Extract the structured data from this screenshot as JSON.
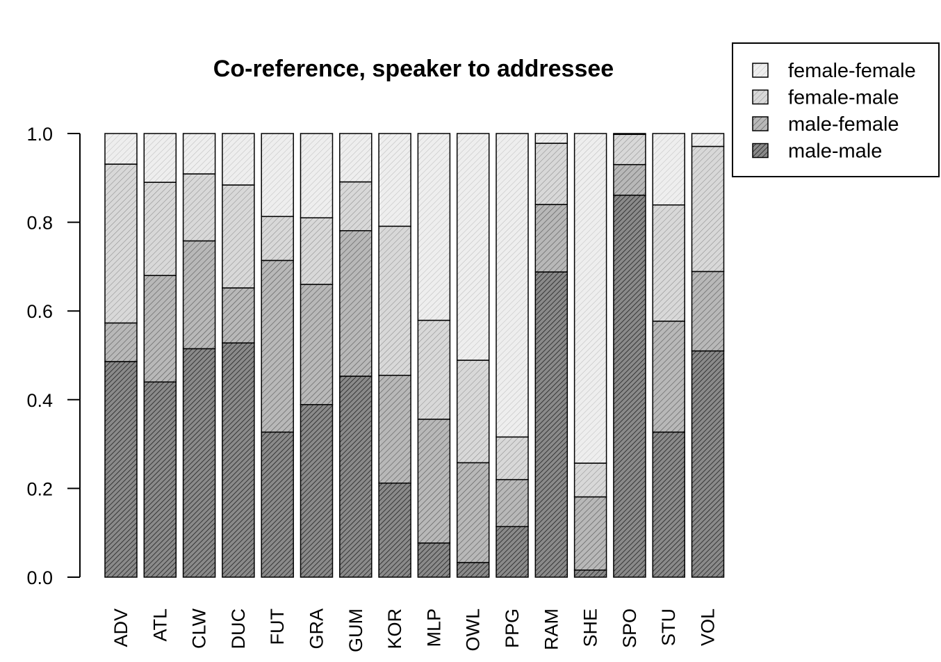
{
  "chart_data": {
    "type": "bar",
    "stacked": true,
    "title": "Co-reference, speaker to addressee",
    "xlabel": "",
    "ylabel": "",
    "ylim": [
      0,
      1
    ],
    "yticks": [
      "0.0",
      "0.2",
      "0.4",
      "0.6",
      "0.8",
      "1.0"
    ],
    "grid": false,
    "legend_position": "top-right",
    "categories": [
      "ADV",
      "ATL",
      "CLW",
      "DUC",
      "FUT",
      "GRA",
      "GUM",
      "KOR",
      "MLP",
      "OWL",
      "PPG",
      "RAM",
      "SHE",
      "SPO",
      "STU",
      "VOL"
    ],
    "series": [
      {
        "name": "male-male",
        "values": [
          0.486,
          0.44,
          0.515,
          0.528,
          0.327,
          0.389,
          0.453,
          0.212,
          0.077,
          0.033,
          0.114,
          0.688,
          0.016,
          0.861,
          0.327,
          0.51
        ]
      },
      {
        "name": "male-female",
        "values": [
          0.087,
          0.24,
          0.243,
          0.124,
          0.387,
          0.271,
          0.328,
          0.243,
          0.279,
          0.225,
          0.106,
          0.152,
          0.165,
          0.069,
          0.25,
          0.179
        ]
      },
      {
        "name": "female-male",
        "values": [
          0.358,
          0.21,
          0.151,
          0.232,
          0.099,
          0.15,
          0.11,
          0.336,
          0.223,
          0.231,
          0.096,
          0.138,
          0.076,
          0.068,
          0.262,
          0.282
        ]
      },
      {
        "name": "female-female",
        "values": [
          0.069,
          0.11,
          0.091,
          0.116,
          0.187,
          0.19,
          0.109,
          0.209,
          0.421,
          0.511,
          0.684,
          0.022,
          0.743,
          0.002,
          0.161,
          0.029
        ]
      }
    ],
    "legend_order": [
      "female-female",
      "female-male",
      "male-female",
      "male-male"
    ],
    "colors": {
      "male-male": "#808080",
      "male-female": "#b4b4b4",
      "female-male": "#d6d6d6",
      "female-female": "#ececec"
    }
  }
}
